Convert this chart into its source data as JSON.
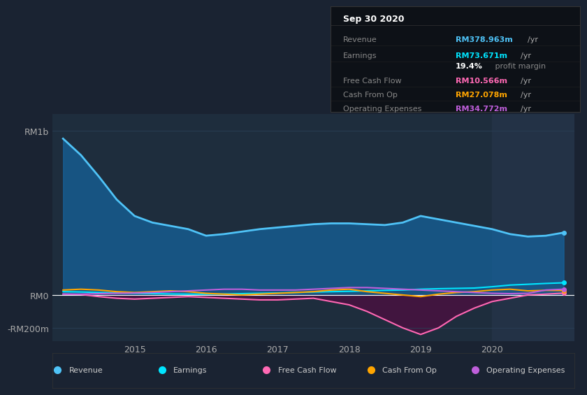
{
  "bg_color": "#1a2332",
  "plot_bg_color": "#1e2d3d",
  "grid_color": "#2a3f55",
  "zero_line_color": "#ffffff",
  "title_box": {
    "date": "Sep 30 2020",
    "rows": [
      {
        "label": "Revenue",
        "value": "RM378.963m",
        "unit": "/yr",
        "value_color": "#4fc3f7"
      },
      {
        "label": "Earnings",
        "value": "RM73.671m",
        "unit": "/yr",
        "value_color": "#00e5ff"
      },
      {
        "label": "",
        "value": "19.4%",
        "unit": " profit margin",
        "value_color": "#ffffff"
      },
      {
        "label": "Free Cash Flow",
        "value": "RM10.566m",
        "unit": "/yr",
        "value_color": "#ff69b4"
      },
      {
        "label": "Cash From Op",
        "value": "RM27.078m",
        "unit": "/yr",
        "value_color": "#ffa500"
      },
      {
        "label": "Operating Expenses",
        "value": "RM34.772m",
        "unit": "/yr",
        "value_color": "#bf5fdb"
      }
    ]
  },
  "x_years": [
    2014.0,
    2014.25,
    2014.5,
    2014.75,
    2015.0,
    2015.25,
    2015.5,
    2015.75,
    2016.0,
    2016.25,
    2016.5,
    2016.75,
    2017.0,
    2017.25,
    2017.5,
    2017.75,
    2018.0,
    2018.25,
    2018.5,
    2018.75,
    2019.0,
    2019.25,
    2019.5,
    2019.75,
    2020.0,
    2020.25,
    2020.5,
    2020.75,
    2021.0
  ],
  "revenue": [
    950,
    850,
    720,
    580,
    480,
    440,
    420,
    400,
    360,
    370,
    385,
    400,
    410,
    420,
    430,
    435,
    435,
    430,
    425,
    440,
    480,
    460,
    440,
    420,
    400,
    370,
    355,
    360,
    379
  ],
  "earnings": [
    20,
    18,
    15,
    12,
    10,
    8,
    6,
    5,
    5,
    6,
    8,
    10,
    12,
    15,
    18,
    20,
    22,
    25,
    28,
    30,
    35,
    38,
    40,
    42,
    50,
    60,
    65,
    70,
    74
  ],
  "free_cash_flow": [
    5,
    3,
    -10,
    -20,
    -25,
    -20,
    -15,
    -10,
    -15,
    -20,
    -25,
    -30,
    -30,
    -25,
    -20,
    -40,
    -60,
    -100,
    -150,
    -200,
    -240,
    -200,
    -130,
    -80,
    -40,
    -20,
    0,
    5,
    11
  ],
  "cash_from_op": [
    30,
    35,
    30,
    20,
    15,
    20,
    25,
    20,
    10,
    5,
    0,
    5,
    10,
    15,
    20,
    30,
    35,
    20,
    10,
    0,
    -10,
    5,
    15,
    20,
    30,
    35,
    25,
    28,
    27
  ],
  "operating_expenses": [
    5,
    5,
    8,
    10,
    12,
    15,
    20,
    25,
    30,
    35,
    35,
    30,
    30,
    30,
    35,
    40,
    45,
    45,
    40,
    35,
    30,
    25,
    20,
    15,
    10,
    8,
    10,
    30,
    35
  ],
  "ytick_labels": [
    "RM1b",
    "RM0",
    "-RM200m"
  ],
  "ytick_values": [
    1000,
    0,
    -200
  ],
  "xtick_labels": [
    "2015",
    "2016",
    "2017",
    "2018",
    "2019",
    "2020"
  ],
  "xtick_values": [
    2015,
    2016,
    2017,
    2018,
    2019,
    2020
  ],
  "highlight_start": 2020.0,
  "xmin": 2013.85,
  "xmax": 2021.15,
  "ymin": -280,
  "ymax": 1100,
  "legend_items": [
    {
      "label": "Revenue",
      "color": "#4fc3f7"
    },
    {
      "label": "Earnings",
      "color": "#00e5ff"
    },
    {
      "label": "Free Cash Flow",
      "color": "#ff69b4"
    },
    {
      "label": "Cash From Op",
      "color": "#ffa500"
    },
    {
      "label": "Operating Expenses",
      "color": "#bf5fdb"
    }
  ]
}
